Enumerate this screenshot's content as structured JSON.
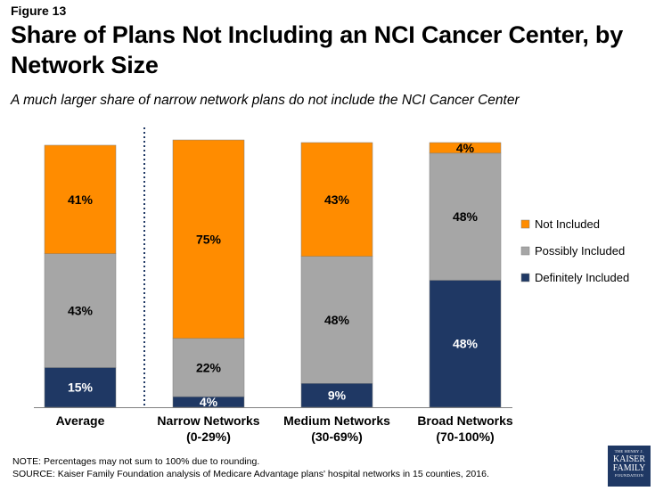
{
  "figure_label": "Figure 13",
  "title": "Share of Plans Not Including an NCI Cancer Center, by Network Size",
  "subtitle": "A much larger share of narrow network plans do not include the NCI Cancer Center",
  "chart_data": {
    "type": "bar",
    "stacked": true,
    "categories": [
      [
        "Average"
      ],
      [
        "Narrow Networks",
        "(0-29%)"
      ],
      [
        "Medium Networks",
        "(30-69%)"
      ],
      [
        "Broad Networks",
        "(70-100%)"
      ]
    ],
    "series": [
      {
        "name": "Definitely Included",
        "color": "#1f3864",
        "label_color": "#ffffff",
        "values": [
          15,
          4,
          9,
          48
        ],
        "labels": [
          "15%",
          "4%",
          "9%",
          "48%"
        ]
      },
      {
        "name": "Possibly Included",
        "color": "#a6a6a6",
        "label_color": "#000000",
        "values": [
          43,
          22,
          48,
          48
        ],
        "labels": [
          "43%",
          "22%",
          "48%",
          "48%"
        ]
      },
      {
        "name": "Not Included",
        "color": "#ff8c00",
        "label_color": "#000000",
        "values": [
          41,
          75,
          43,
          4
        ],
        "labels": [
          "41%",
          "75%",
          "43%",
          "4%"
        ]
      }
    ],
    "legend_order": [
      "Not Included",
      "Possibly Included",
      "Definitely Included"
    ],
    "legend_position": "right",
    "ylim": [
      0,
      100
    ],
    "divider_after_category": 0
  },
  "notes": [
    "NOTE: Percentages may not sum to 100% due to rounding.",
    "SOURCE: Kaiser Family Foundation analysis of Medicare Advantage plans' hospital networks in 15 counties, 2016."
  ],
  "logo": {
    "line1": "THE HENRY J.",
    "line2": "KAISER",
    "line3": "FAMILY",
    "line4": "FOUNDATION"
  }
}
